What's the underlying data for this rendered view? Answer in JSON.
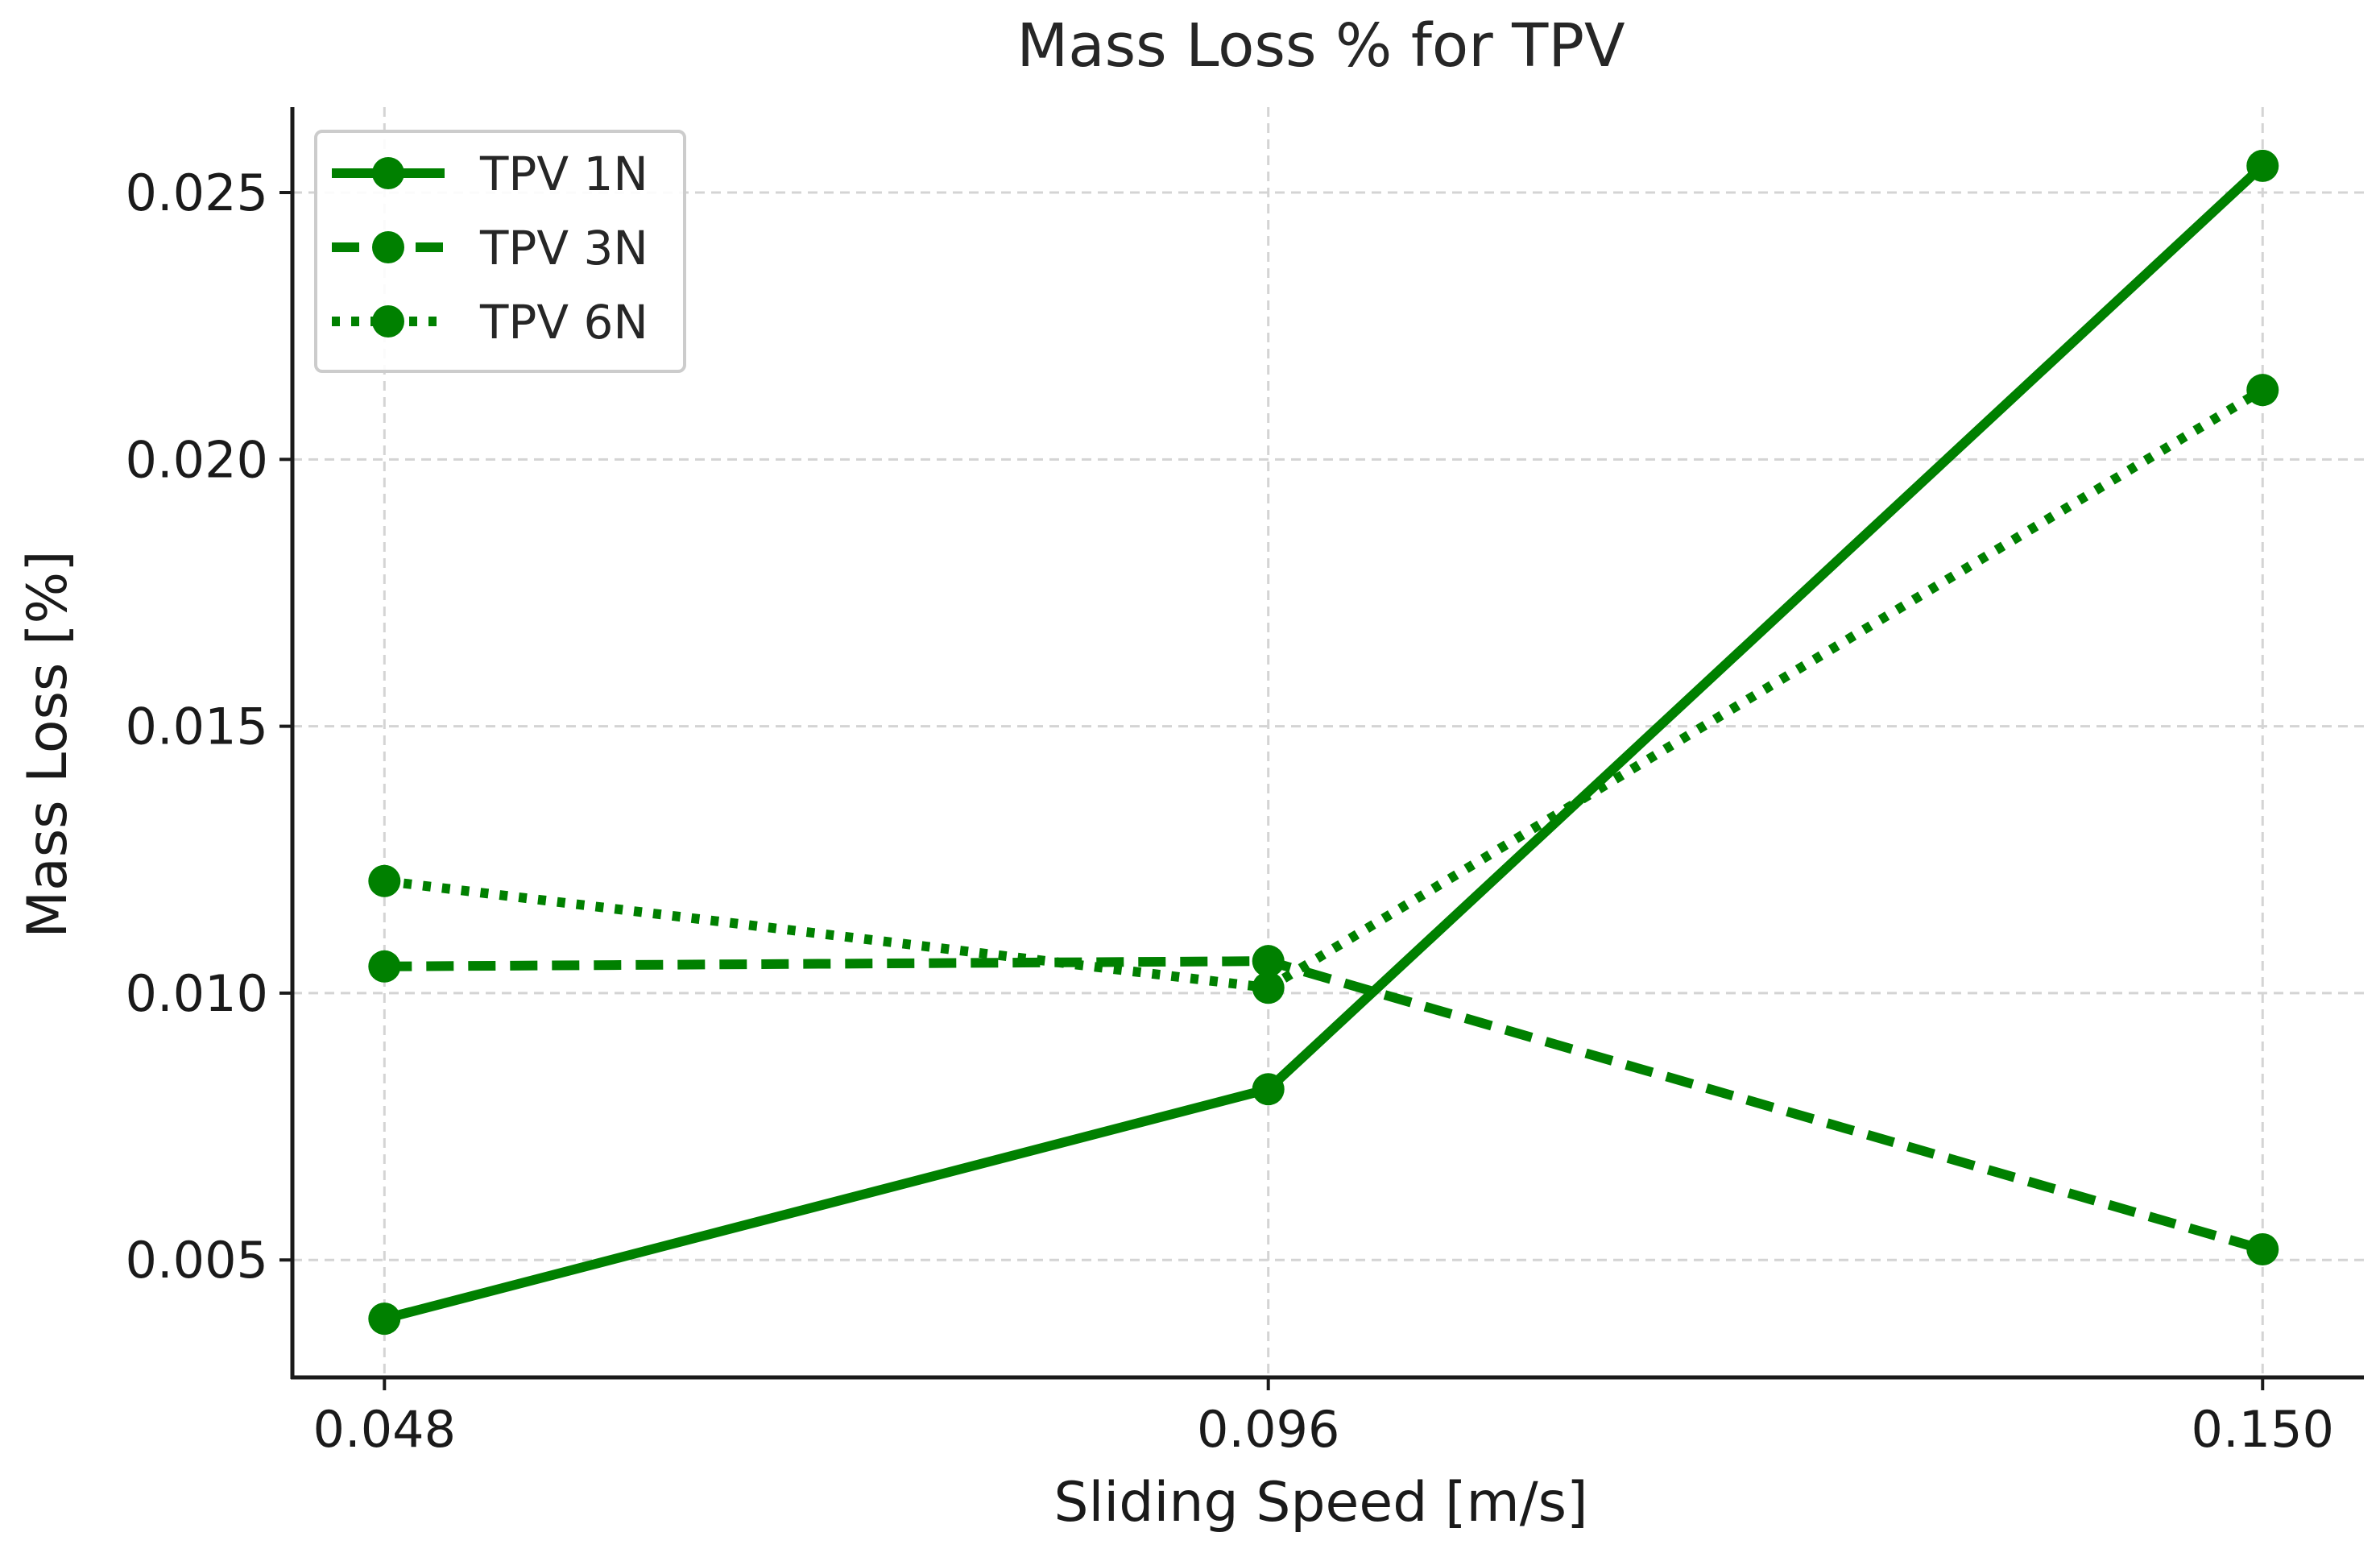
{
  "chart_data": {
    "type": "line",
    "title": "Mass Loss % for TPV",
    "xlabel": "Sliding Speed [m/s]",
    "ylabel": "Mass Loss [%]",
    "categories": [
      "0.048",
      "0.096",
      "0.150"
    ],
    "x": [
      0.048,
      0.096,
      0.15
    ],
    "xlim": [
      0.043,
      0.1555
    ],
    "ylim": [
      0.0028,
      0.0266
    ],
    "yticks": [
      0.005,
      0.01,
      0.015,
      0.02,
      0.025
    ],
    "ytick_labels": [
      "0.005",
      "0.010",
      "0.015",
      "0.020",
      "0.025"
    ],
    "grid": true,
    "legend_position": "top-left",
    "color": "#008000",
    "series": [
      {
        "name": "TPV 1N",
        "style": "solid",
        "values": [
          0.0039,
          0.0082,
          0.0255
        ]
      },
      {
        "name": "TPV 3N",
        "style": "dashed",
        "values": [
          0.0105,
          0.0106,
          0.0052
        ]
      },
      {
        "name": "TPV 6N",
        "style": "dotted",
        "values": [
          0.0121,
          0.0101,
          0.0213
        ]
      }
    ]
  }
}
